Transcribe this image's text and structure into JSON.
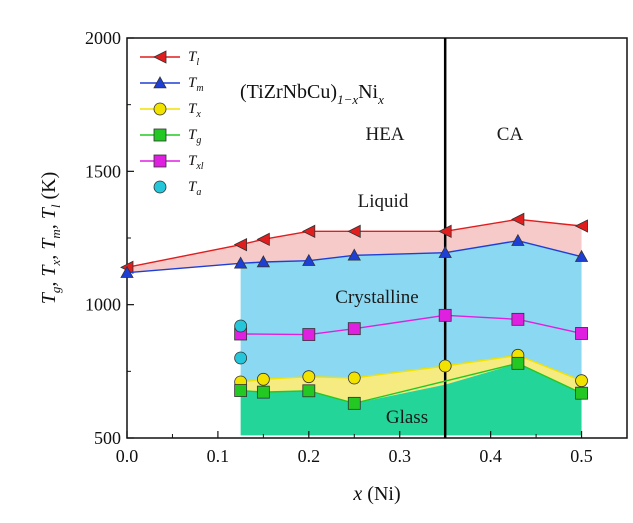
{
  "chart_data": {
    "type": "line",
    "title": "(TiZrNbCu)1-xNix",
    "xlabel": "x (Ni)",
    "ylabel": "Tg, Tx, Tm, Tl (K)",
    "xlim": [
      0.0,
      0.55
    ],
    "ylim": [
      500,
      2000
    ],
    "x_ticks": [
      "0.0",
      "0.1",
      "0.2",
      "0.3",
      "0.4",
      "0.5"
    ],
    "y_ticks": [
      "500",
      "1000",
      "1500",
      "2000"
    ],
    "boundary_x": 0.35,
    "region_labels": {
      "hea": "HEA",
      "ca": "CA",
      "liquid": "Liquid",
      "crystalline": "Crystalline",
      "glass": "Glass"
    },
    "series": [
      {
        "name": "Tl",
        "color": "#e11d1d",
        "marker": "triangle-left",
        "x": [
          0.0,
          0.125,
          0.15,
          0.2,
          0.25,
          0.35,
          0.43,
          0.5
        ],
        "y": [
          1140,
          1225,
          1245,
          1275,
          1275,
          1275,
          1320,
          1295
        ]
      },
      {
        "name": "Tm",
        "color": "#1e3fd6",
        "marker": "triangle-up",
        "x": [
          0.0,
          0.125,
          0.15,
          0.2,
          0.25,
          0.35,
          0.43,
          0.5
        ],
        "y": [
          1120,
          1155,
          1160,
          1165,
          1185,
          1195,
          1240,
          1180
        ]
      },
      {
        "name": "Tx",
        "color": "#f2e200",
        "marker": "circle",
        "x": [
          0.125,
          0.15,
          0.2,
          0.25,
          0.35,
          0.43,
          0.5
        ],
        "y": [
          710,
          720,
          730,
          725,
          770,
          810,
          715
        ]
      },
      {
        "name": "Tg",
        "color": "#23c823",
        "marker": "square",
        "x": [
          0.125,
          0.15,
          0.2,
          0.25,
          0.43,
          0.5
        ],
        "y": [
          678,
          672,
          677,
          630,
          780,
          668
        ]
      },
      {
        "name": "Txl",
        "color": "#e020e0",
        "marker": "square",
        "x": [
          0.125,
          0.2,
          0.25,
          0.35,
          0.43,
          0.5
        ],
        "y": [
          890,
          888,
          910,
          960,
          945,
          892
        ]
      },
      {
        "name": "Ta",
        "color": "#26c6da",
        "marker": "circle",
        "x": [
          0.125,
          0.125
        ],
        "y": [
          920,
          800
        ]
      }
    ],
    "legend": {
      "position": "top-left",
      "entries": [
        {
          "main": "T",
          "sub": "l",
          "color": "#e11d1d",
          "marker": "triangle-left",
          "line": true
        },
        {
          "main": "T",
          "sub": "m",
          "color": "#1e3fd6",
          "marker": "triangle-up",
          "line": true
        },
        {
          "main": "T",
          "sub": "x",
          "color": "#f2e200",
          "marker": "circle",
          "line": true
        },
        {
          "main": "T",
          "sub": "g",
          "color": "#23c823",
          "marker": "square",
          "line": true
        },
        {
          "main": "T",
          "sub": "xl",
          "color": "#e020e0",
          "marker": "square",
          "line": true
        },
        {
          "main": "T",
          "sub": "a",
          "color": "#26c6da",
          "marker": "circle",
          "line": false
        }
      ]
    }
  },
  "labels": {
    "title_main": "(TiZrNbCu)",
    "title_sub1": "1",
    "title_sub2": "−x",
    "title_ni": "Ni",
    "title_subx": "x",
    "xlabel_var": "x",
    "xlabel_rest": " (Ni)",
    "ylabel_parts": [
      "T",
      "g",
      ", T",
      "x",
      ", T",
      "m",
      ", T",
      "l",
      " (K)"
    ]
  }
}
